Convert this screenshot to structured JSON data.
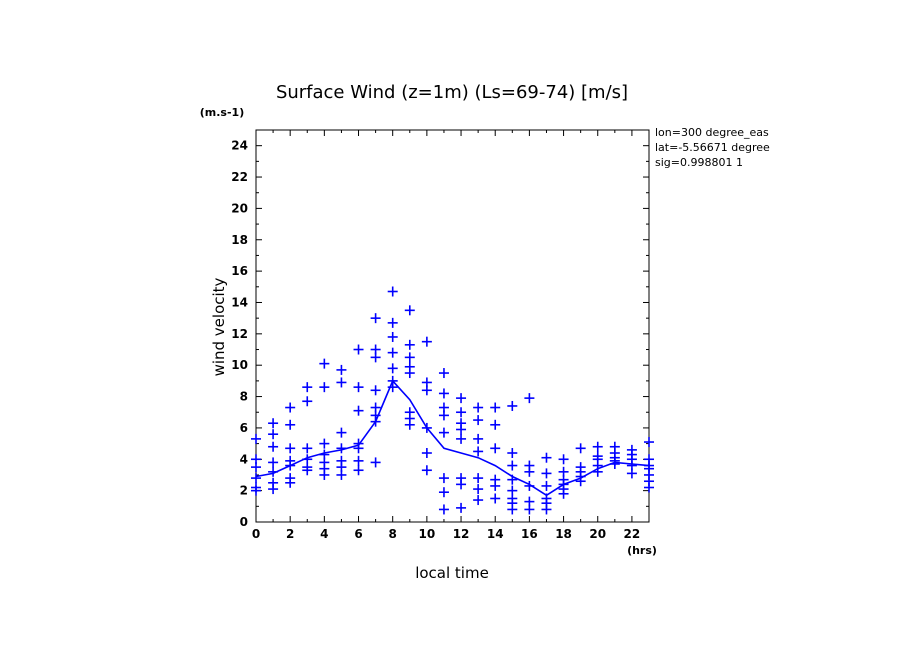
{
  "chart_data": {
    "type": "scatter",
    "title": "Surface Wind (z=1m) (Ls=69-74) [m/s]",
    "xlabel": "local time",
    "ylabel": "wind velocity",
    "x_unit": "(hrs)",
    "y_unit": "(m.s-1)",
    "xlim": [
      0,
      23
    ],
    "ylim": [
      0,
      25
    ],
    "x_ticks": [
      0,
      2,
      4,
      6,
      8,
      10,
      12,
      14,
      16,
      18,
      20,
      22
    ],
    "y_ticks": [
      0,
      2,
      4,
      6,
      8,
      10,
      12,
      14,
      16,
      18,
      20,
      22,
      24
    ],
    "grid": false,
    "annotations": [
      "lon=300 degree_eas",
      "lat=-5.56671 degree",
      "sig=0.998801 1"
    ],
    "color": "#0000ff",
    "series": [
      {
        "style": "markers",
        "points": [
          [
            0,
            5.3
          ],
          [
            0,
            4.0
          ],
          [
            0,
            3.5
          ],
          [
            0,
            2.8
          ],
          [
            0,
            2.2
          ],
          [
            0,
            2.0
          ],
          [
            1,
            6.3
          ],
          [
            1,
            5.6
          ],
          [
            1,
            4.8
          ],
          [
            1,
            3.8
          ],
          [
            1,
            3.2
          ],
          [
            1,
            2.5
          ],
          [
            1,
            2.1
          ],
          [
            2,
            7.3
          ],
          [
            2,
            6.2
          ],
          [
            2,
            4.7
          ],
          [
            2,
            3.9
          ],
          [
            2,
            3.6
          ],
          [
            2,
            2.8
          ],
          [
            2,
            2.5
          ],
          [
            3,
            8.6
          ],
          [
            3,
            7.7
          ],
          [
            3,
            4.7
          ],
          [
            3,
            4.0
          ],
          [
            3,
            3.5
          ],
          [
            3,
            3.3
          ],
          [
            4,
            10.1
          ],
          [
            4,
            8.6
          ],
          [
            4,
            5.0
          ],
          [
            4,
            4.3
          ],
          [
            4,
            3.8
          ],
          [
            4,
            3.4
          ],
          [
            4,
            3.0
          ],
          [
            5,
            9.7
          ],
          [
            5,
            8.9
          ],
          [
            5,
            5.7
          ],
          [
            5,
            4.7
          ],
          [
            5,
            3.9
          ],
          [
            5,
            3.5
          ],
          [
            5,
            3.0
          ],
          [
            6,
            11.0
          ],
          [
            6,
            8.6
          ],
          [
            6,
            7.1
          ],
          [
            6,
            5.0
          ],
          [
            6,
            4.7
          ],
          [
            6,
            3.9
          ],
          [
            6,
            3.3
          ],
          [
            7,
            13.0
          ],
          [
            7,
            11.0
          ],
          [
            7,
            10.5
          ],
          [
            7,
            8.4
          ],
          [
            7,
            7.3
          ],
          [
            7,
            6.8
          ],
          [
            7,
            6.4
          ],
          [
            7,
            3.8
          ],
          [
            8,
            14.7
          ],
          [
            8,
            12.7
          ],
          [
            8,
            11.8
          ],
          [
            8,
            10.8
          ],
          [
            8,
            9.8
          ],
          [
            8,
            9.0
          ],
          [
            8,
            8.6
          ],
          [
            9,
            13.5
          ],
          [
            9,
            11.3
          ],
          [
            9,
            10.5
          ],
          [
            9,
            9.9
          ],
          [
            9,
            9.5
          ],
          [
            9,
            7.0
          ],
          [
            9,
            6.6
          ],
          [
            9,
            6.2
          ],
          [
            10,
            11.5
          ],
          [
            10,
            8.9
          ],
          [
            10,
            8.4
          ],
          [
            10,
            6.0
          ],
          [
            10,
            4.4
          ],
          [
            10,
            3.3
          ],
          [
            11,
            9.5
          ],
          [
            11,
            8.2
          ],
          [
            11,
            7.3
          ],
          [
            11,
            6.8
          ],
          [
            11,
            5.7
          ],
          [
            11,
            2.8
          ],
          [
            11,
            1.9
          ],
          [
            11,
            0.8
          ],
          [
            12,
            7.9
          ],
          [
            12,
            7.0
          ],
          [
            12,
            6.3
          ],
          [
            12,
            5.9
          ],
          [
            12,
            5.3
          ],
          [
            12,
            2.8
          ],
          [
            12,
            2.4
          ],
          [
            12,
            0.9
          ],
          [
            13,
            7.3
          ],
          [
            13,
            6.5
          ],
          [
            13,
            5.3
          ],
          [
            13,
            4.5
          ],
          [
            13,
            2.8
          ],
          [
            13,
            2.1
          ],
          [
            13,
            1.4
          ],
          [
            14,
            7.3
          ],
          [
            14,
            6.2
          ],
          [
            14,
            4.7
          ],
          [
            14,
            2.7
          ],
          [
            14,
            2.3
          ],
          [
            14,
            1.5
          ],
          [
            15,
            7.4
          ],
          [
            15,
            4.4
          ],
          [
            15,
            3.6
          ],
          [
            15,
            2.7
          ],
          [
            15,
            2.0
          ],
          [
            15,
            1.5
          ],
          [
            15,
            1.2
          ],
          [
            15,
            0.8
          ],
          [
            16,
            7.9
          ],
          [
            16,
            3.6
          ],
          [
            16,
            3.2
          ],
          [
            16,
            2.3
          ],
          [
            16,
            1.3
          ],
          [
            16,
            0.8
          ],
          [
            17,
            4.1
          ],
          [
            17,
            3.1
          ],
          [
            17,
            2.3
          ],
          [
            17,
            1.5
          ],
          [
            17,
            1.2
          ],
          [
            17,
            0.8
          ],
          [
            18,
            4.0
          ],
          [
            18,
            3.2
          ],
          [
            18,
            2.7
          ],
          [
            18,
            2.4
          ],
          [
            18,
            2.1
          ],
          [
            18,
            1.8
          ],
          [
            19,
            4.7
          ],
          [
            19,
            3.5
          ],
          [
            19,
            3.2
          ],
          [
            19,
            2.9
          ],
          [
            19,
            2.6
          ],
          [
            20,
            4.8
          ],
          [
            20,
            4.2
          ],
          [
            20,
            4.0
          ],
          [
            20,
            3.6
          ],
          [
            20,
            3.2
          ],
          [
            21,
            4.8
          ],
          [
            21,
            4.4
          ],
          [
            21,
            4.1
          ],
          [
            21,
            3.9
          ],
          [
            21,
            3.7
          ],
          [
            22,
            4.6
          ],
          [
            22,
            4.3
          ],
          [
            22,
            4.0
          ],
          [
            22,
            3.6
          ],
          [
            22,
            3.1
          ],
          [
            23,
            5.1
          ],
          [
            23,
            4.0
          ],
          [
            23,
            3.6
          ],
          [
            23,
            3.4
          ],
          [
            23,
            3.0
          ],
          [
            23,
            2.6
          ],
          [
            23,
            2.2
          ]
        ]
      },
      {
        "style": "line",
        "x": [
          0,
          1,
          2,
          3,
          4,
          5,
          6,
          7,
          8,
          9,
          10,
          11,
          12,
          13,
          14,
          15,
          16,
          17,
          18,
          19,
          20,
          21,
          22,
          23
        ],
        "values": [
          2.9,
          3.1,
          3.6,
          4.1,
          4.4,
          4.6,
          4.9,
          6.4,
          9.0,
          7.8,
          6.0,
          4.7,
          4.4,
          4.1,
          3.6,
          2.9,
          2.4,
          1.7,
          2.4,
          2.8,
          3.4,
          3.8,
          3.7,
          3.6
        ]
      }
    ]
  }
}
